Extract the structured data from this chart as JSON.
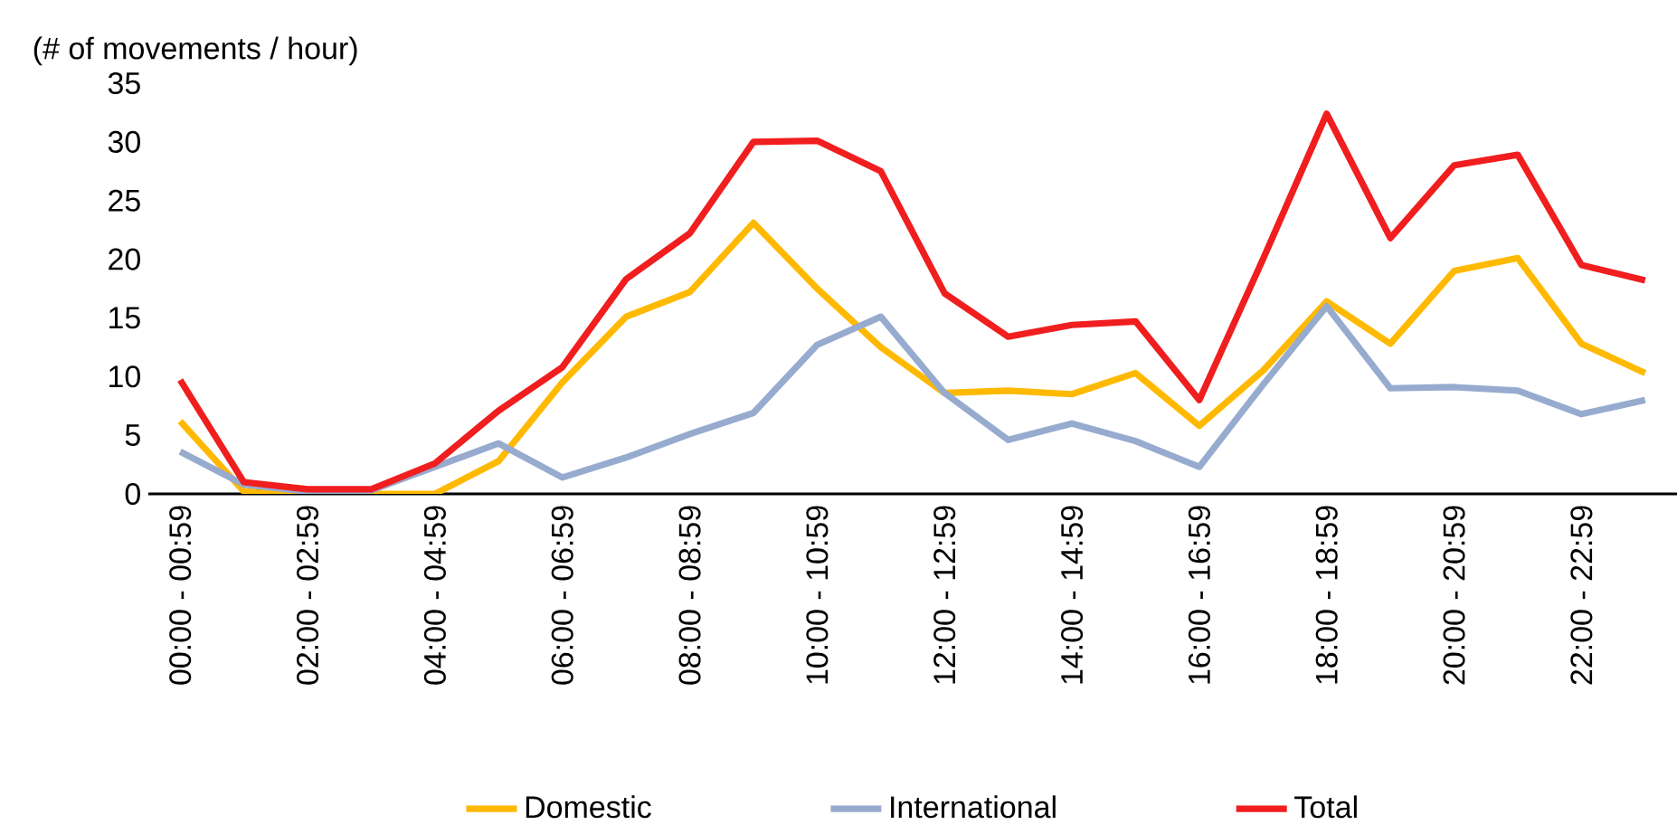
{
  "chart_data": {
    "type": "line",
    "ylabel": "(# of movements / hour)",
    "categories": [
      "00:00 - 00:59",
      null,
      "02:00 - 02:59",
      null,
      "04:00 - 04:59",
      null,
      "06:00 - 06:59",
      null,
      "08:00 - 08:59",
      null,
      "10:00 - 10:59",
      null,
      "12:00 - 12:59",
      null,
      "14:00 - 14:59",
      null,
      "16:00 - 16:59",
      null,
      "18:00 - 18:59",
      null,
      "20:00 - 20:59",
      null,
      "22:00 - 22:59",
      null
    ],
    "series": [
      {
        "name": "Domestic",
        "color": "#ffb900",
        "values": [
          6.2,
          0.2,
          0,
          0,
          0,
          2.8,
          9.5,
          15.1,
          17.2,
          23.1,
          17.5,
          12.5,
          8.6,
          8.8,
          8.5,
          10.3,
          5.8,
          10.5,
          16.4,
          12.8,
          19,
          20.1,
          12.8,
          10.3
        ]
      },
      {
        "name": "International",
        "color": "#97abcf",
        "values": [
          3.6,
          0.8,
          0.2,
          0.3,
          2.3,
          4.3,
          1.4,
          3.1,
          5.1,
          6.9,
          12.7,
          15.1,
          8.6,
          4.6,
          6,
          4.5,
          2.3,
          9.3,
          16,
          9,
          9.1,
          8.8,
          6.8,
          8
        ]
      },
      {
        "name": "Total",
        "color": "#f01e1e",
        "values": [
          9.7,
          1,
          0.4,
          0.4,
          2.6,
          7.1,
          10.8,
          18.3,
          22.2,
          30,
          30.1,
          27.5,
          17.1,
          13.4,
          14.4,
          14.7,
          8,
          20,
          32.4,
          21.8,
          28,
          28.9,
          19.5,
          18.2
        ]
      }
    ],
    "ylim": [
      0,
      35
    ],
    "yticks": [
      0,
      5,
      10,
      15,
      20,
      25,
      30,
      35
    ],
    "grid": false,
    "legend": "bottom",
    "marker": "none",
    "line_style": "solid"
  }
}
